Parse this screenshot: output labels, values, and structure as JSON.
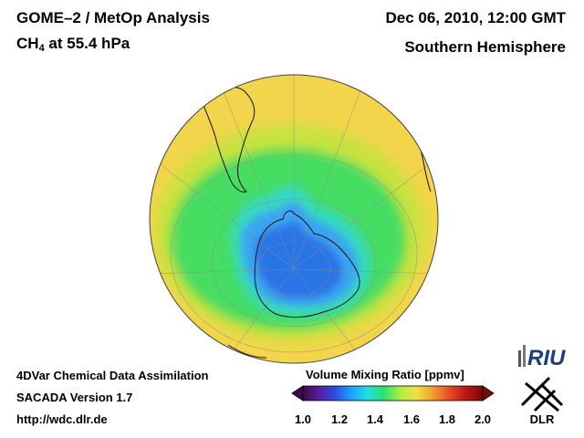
{
  "header": {
    "title_line1": "GOME–2 / MetOp Analysis",
    "species": "CH",
    "species_sub": "4",
    "level": " at 55.4 hPa",
    "date": "Dec 06, 2010, 12:00 GMT",
    "region": "Southern Hemisphere"
  },
  "footer": {
    "line1": "4DVar Chemical Data Assimilation",
    "line2": "SACADA Version 1.7",
    "line3": "http://wdc.dlr.de"
  },
  "colorbar": {
    "title": "Volume Mixing Ratio [ppmv]",
    "ticks": [
      "1.0",
      "1.2",
      "1.4",
      "1.6",
      "1.8",
      "2.0"
    ],
    "min": 1.0,
    "max": 2.0,
    "colors": [
      "#3a0a4a",
      "#5a1aa0",
      "#2a50e0",
      "#1fa0ff",
      "#20e0e0",
      "#2ee070",
      "#a8f040",
      "#f0e040",
      "#f0a030",
      "#e85020",
      "#c01818",
      "#7a0a0a"
    ]
  },
  "logos": {
    "riu": "RIU",
    "dlr": "DLR"
  },
  "map": {
    "colors": {
      "outer": "#f2d54a",
      "mid": "#b8e33a",
      "green": "#3ee06a",
      "cyan": "#35d8d0",
      "blue_light": "#3aa8f0",
      "blue_core": "#2a72e8"
    },
    "regions": [
      {
        "name": "outer-ring",
        "value": 1.63
      },
      {
        "name": "transition-band",
        "value": 1.55
      },
      {
        "name": "green-band",
        "value": 1.48
      },
      {
        "name": "cyan-band",
        "value": 1.38
      },
      {
        "name": "light-blue-band",
        "value": 1.3
      },
      {
        "name": "blue-core",
        "value": 1.22
      }
    ]
  }
}
